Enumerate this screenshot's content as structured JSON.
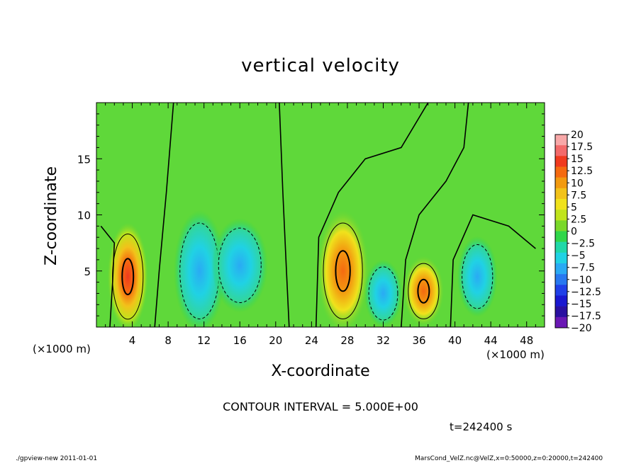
{
  "chart_data": {
    "type": "heatmap",
    "title": "vertical velocity",
    "xlabel": "X-coordinate",
    "ylabel": "Z-coordinate",
    "x_unit_label": "(×1000 m)",
    "y_unit_label": "(×1000 m)",
    "xlim": [
      0,
      50
    ],
    "ylim": [
      0,
      20
    ],
    "x_ticks": [
      4,
      8,
      12,
      16,
      20,
      24,
      28,
      32,
      36,
      40,
      44,
      48
    ],
    "y_ticks": [
      5,
      10,
      15
    ],
    "contour_interval_text": "CONTOUR INTERVAL = 5.000E+00",
    "time_text": "t=242400 s",
    "colorbar": {
      "levels": [
        "20",
        "17.5",
        "15",
        "12.5",
        "10",
        "7.5",
        "5",
        "2.5",
        "0",
        "−2.5",
        "−5",
        "−7.5",
        "−10",
        "−12.5",
        "−15",
        "−17.5",
        "−20"
      ],
      "colors": [
        "#f8a8a8",
        "#f36a6a",
        "#f03a1e",
        "#f56a10",
        "#f29a10",
        "#f2c21a",
        "#f0e21c",
        "#c0e41c",
        "#7ad82a",
        "#30d64a",
        "#20d8a8",
        "#20d2e4",
        "#2aaaf4",
        "#2878f0",
        "#2040e8",
        "#1a18d0",
        "#2a10a0",
        "#6a18b4"
      ]
    },
    "features": [
      {
        "kind": "updraft",
        "x_center": 3.5,
        "z_center": 4.5,
        "x_half_width": 1.8,
        "z_half_height": 4.0,
        "peak": 17.5
      },
      {
        "kind": "downdraft",
        "x_center": 11.5,
        "z_center": 5.0,
        "x_half_width": 2.3,
        "z_half_height": 4.5,
        "peak": -8
      },
      {
        "kind": "downdraft",
        "x_center": 16.0,
        "z_center": 5.5,
        "x_half_width": 2.5,
        "z_half_height": 3.5,
        "peak": -6
      },
      {
        "kind": "updraft",
        "x_center": 27.5,
        "z_center": 5.0,
        "x_half_width": 2.3,
        "z_half_height": 4.5,
        "peak": 12
      },
      {
        "kind": "downdraft",
        "x_center": 32.0,
        "z_center": 3.0,
        "x_half_width": 1.7,
        "z_half_height": 2.5,
        "peak": -5
      },
      {
        "kind": "updraft",
        "x_center": 36.5,
        "z_center": 3.2,
        "x_half_width": 1.8,
        "z_half_height": 2.6,
        "peak": 10
      },
      {
        "kind": "downdraft",
        "x_center": 42.5,
        "z_center": 4.5,
        "x_half_width": 1.8,
        "z_half_height": 3.0,
        "peak": -6
      }
    ]
  },
  "footer": {
    "left": "./gpview-new   2011-01-01",
    "right": "MarsCond_VelZ.nc@VelZ,x=0:50000,z=0:20000,t=242400"
  }
}
